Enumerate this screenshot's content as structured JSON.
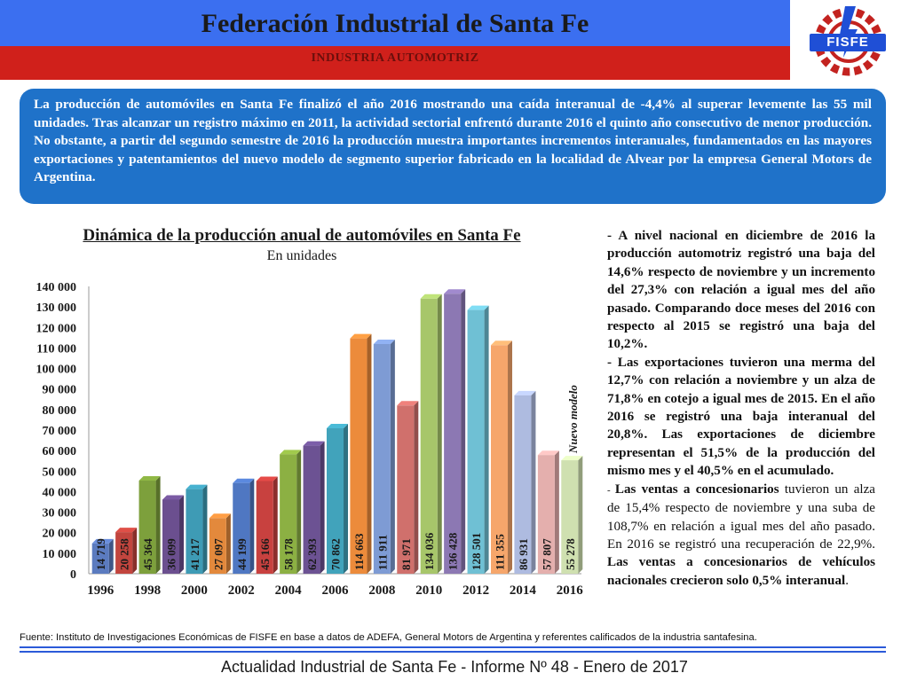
{
  "header": {
    "title": "Federación Industrial de Santa Fe",
    "subtitle": "INDUSTRIA AUTOMOTRIZ",
    "logo_text": "FISFE"
  },
  "summary": "La producción de automóviles en Santa Fe finalizó el año 2016 mostrando una caída interanual de -4,4% al superar levemente las 55 mil unidades. Tras alcanzar un registro máximo en 2011, la actividad sectorial enfrentó durante 2016 el quinto año consecutivo de menor producción. No obstante, a partir del segundo semestre de 2016 la producción muestra importantes incrementos interanuales, fundamentados en las mayores exportaciones y patentamientos del nuevo modelo de segmento superior fabricado en la localidad de Alvear por la empresa General Motors de Argentina.",
  "chart_data": {
    "type": "bar",
    "title": "Dinámica de la producción anual de automóviles en Santa Fe",
    "subtitle": "En unidades",
    "categories": [
      "1996",
      "1997",
      "1998",
      "1999",
      "2000",
      "2001",
      "2002",
      "2003",
      "2004",
      "2005",
      "2006",
      "2007",
      "2008",
      "2009",
      "2010",
      "2011",
      "2012",
      "2013",
      "2014",
      "2015",
      "2016"
    ],
    "values": [
      14719,
      20258,
      45364,
      36099,
      41217,
      27097,
      44199,
      45166,
      58178,
      62393,
      70862,
      114663,
      111911,
      81971,
      134036,
      136428,
      128501,
      111355,
      86931,
      57807,
      55278
    ],
    "value_labels": [
      "14 719",
      "20 258",
      "45 364",
      "36 099",
      "41 217",
      "27 097",
      "44 199",
      "45 166",
      "58 178",
      "62 393",
      "70 862",
      "114 663",
      "111 911",
      "81 971",
      "134 036",
      "136 428",
      "128 501",
      "111 355",
      "86 931",
      "57 807",
      "55 278"
    ],
    "bar_colors": [
      "#5b7bbf",
      "#c2453e",
      "#7da03c",
      "#6b4f8f",
      "#3e9bb5",
      "#e3893c",
      "#4f77c2",
      "#c8413f",
      "#8cb043",
      "#6c5293",
      "#41a3bb",
      "#ec8b3b",
      "#7e9bd4",
      "#d0706c",
      "#a7c66a",
      "#8c78b3",
      "#6fc0d4",
      "#f6a66b",
      "#aebbe0",
      "#e4afad",
      "#cfe0b0"
    ],
    "xticks": [
      "1996",
      "1998",
      "2000",
      "2002",
      "2004",
      "2006",
      "2008",
      "2010",
      "2012",
      "2014",
      "2016"
    ],
    "yticks": [
      "0",
      "10 000",
      "20 000",
      "30 000",
      "40 000",
      "50 000",
      "60 000",
      "70 000",
      "80 000",
      "90 000",
      "100 000",
      "110 000",
      "120 000",
      "130 000",
      "140 000"
    ],
    "ylim": [
      0,
      140000
    ],
    "annotation": "Nuevo modelo",
    "xlabel": "",
    "ylabel": ""
  },
  "right_column": {
    "p1": "- A nivel nacional en diciembre de 2016 la producción automotriz registró una baja del 14,6% respecto de noviembre y un incremento del 27,3% con relación a igual mes del año pasado. Comparando doce meses del 2016 con respecto al 2015 se registró una baja del 10,2%.",
    "p2": "- Las exportaciones tuvieron una merma del 12,7% con relación a noviembre y un alza de 71,8% en cotejo a igual mes de 2015. En el año 2016 se registró una baja interanual del 20,8%. Las exportaciones de diciembre representan el 51,5% de la producción del mismo mes y el 40,5% en el acumulado.",
    "p3_dash": "- ",
    "p3_bold": "Las ventas a concesionarios",
    "p3_rest": " tuvieron un alza de 15,4% respecto de noviembre y una suba de 108,7% en relación a igual mes del año pasado. En 2016 se registró una recuperación de 22,9%. ",
    "p3_bold2": "Las ventas a concesionarios de vehículos nacionales crecieron solo 0,5% interanual",
    "p3_end": "."
  },
  "source": "Fuente: Instituto de Investigaciones Económicas de FISFE en base a datos de ADEFA, General Motors de Argentina y referentes calificados de la industria santafesina.",
  "footer": "Actualidad Industrial de Santa Fe - Informe Nº 48 - Enero de 2017"
}
